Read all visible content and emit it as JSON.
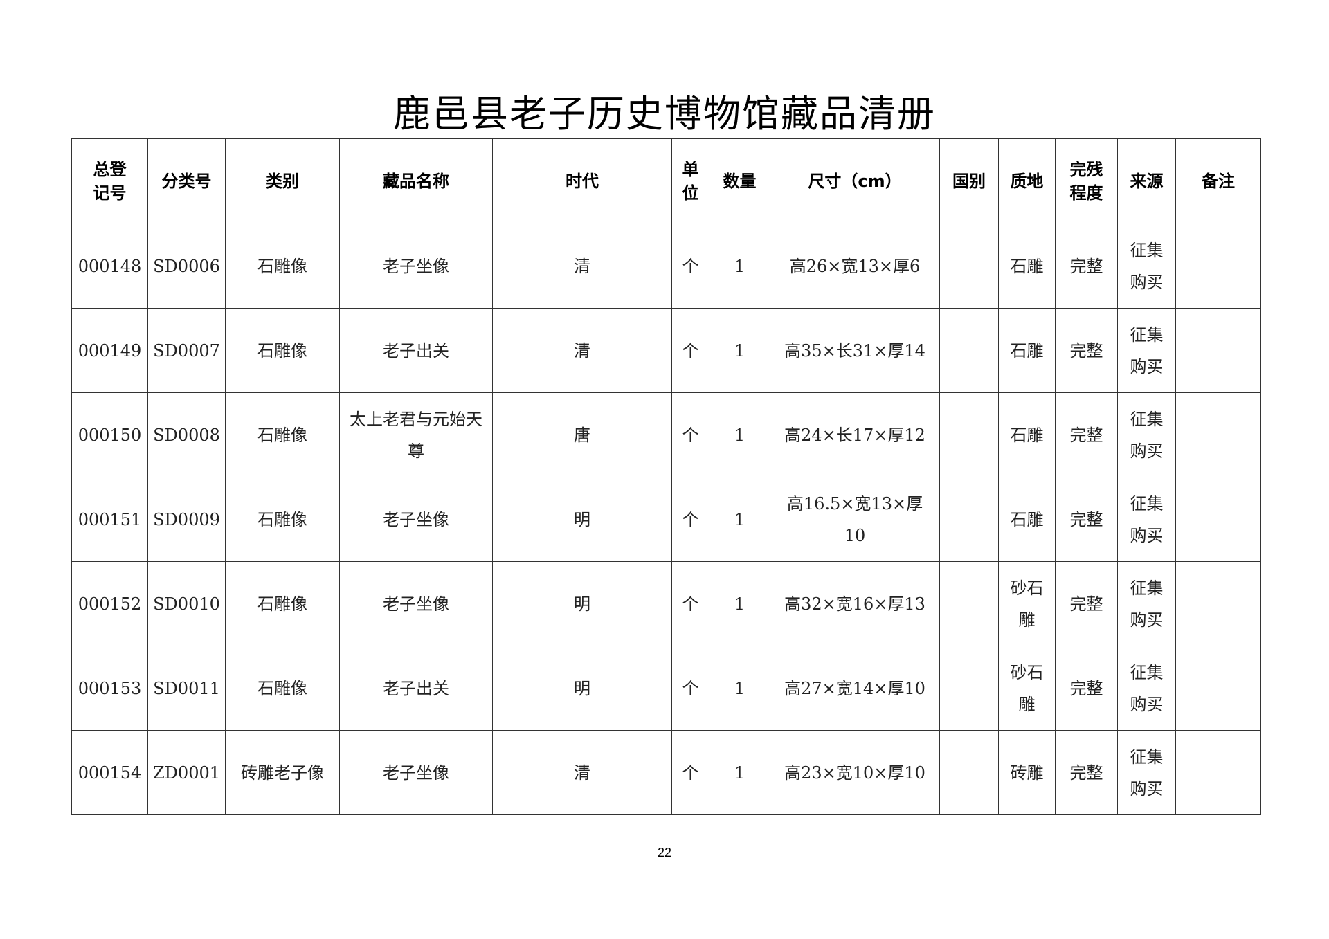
{
  "title": "鹿邑县老子历史博物馆藏品清册",
  "columns": [
    "总登记号",
    "分类号",
    "类别",
    "藏品名称",
    "时代",
    "单位",
    "数量",
    "尺寸（cm）",
    "国别",
    "质地",
    "完残程度",
    "来源",
    "备注"
  ],
  "rows": [
    [
      "000148",
      "SD0006",
      "石雕像",
      "老子坐像",
      "清",
      "个",
      "1",
      "高26×宽13×厚6",
      "",
      "石雕",
      "完整",
      "征集购买",
      ""
    ],
    [
      "000149",
      "SD0007",
      "石雕像",
      "老子出关",
      "清",
      "个",
      "1",
      "高35×长31×厚14",
      "",
      "石雕",
      "完整",
      "征集购买",
      ""
    ],
    [
      "000150",
      "SD0008",
      "石雕像",
      "太上老君与元始天尊",
      "唐",
      "个",
      "1",
      "高24×长17×厚12",
      "",
      "石雕",
      "完整",
      "征集购买",
      ""
    ],
    [
      "000151",
      "SD0009",
      "石雕像",
      "老子坐像",
      "明",
      "个",
      "1",
      "高16.5×宽13×厚10",
      "",
      "石雕",
      "完整",
      "征集购买",
      ""
    ],
    [
      "000152",
      "SD0010",
      "石雕像",
      "老子坐像",
      "明",
      "个",
      "1",
      "高32×宽16×厚13",
      "",
      "砂石雕",
      "完整",
      "征集购买",
      ""
    ],
    [
      "000153",
      "SD0011",
      "石雕像",
      "老子出关",
      "明",
      "个",
      "1",
      "高27×宽14×厚10",
      "",
      "砂石雕",
      "完整",
      "征集购买",
      ""
    ],
    [
      "000154",
      "ZD0001",
      "砖雕老子像",
      "老子坐像",
      "清",
      "个",
      "1",
      "高23×宽10×厚10",
      "",
      "砖雕",
      "完整",
      "征集购买",
      ""
    ]
  ],
  "page_number": "22"
}
